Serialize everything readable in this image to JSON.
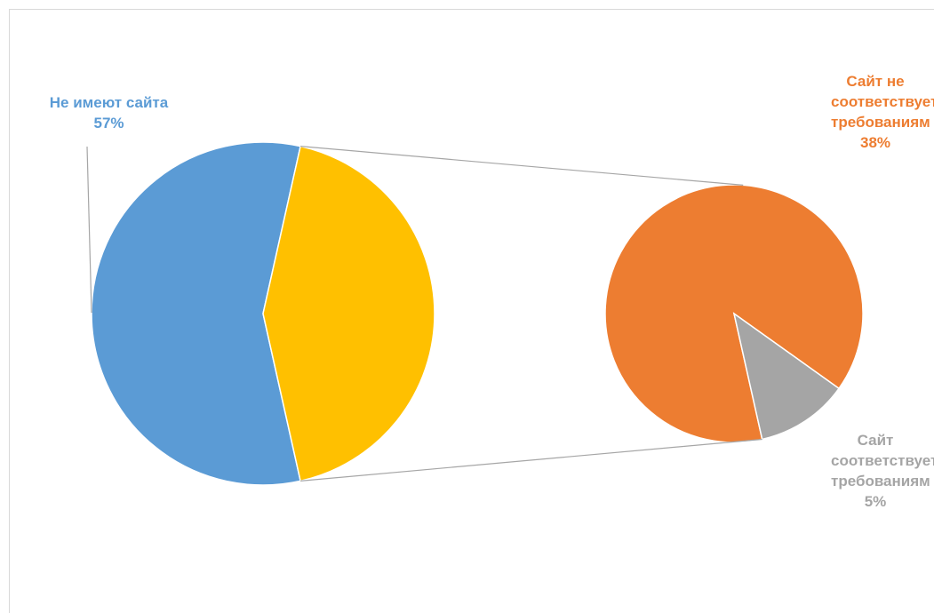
{
  "chart_data": {
    "type": "pie-of-pie",
    "categories": [
      "Не имеют сайта",
      "Сайт не соответствует требованиям",
      "Сайт соответствует требованиям"
    ],
    "values": [
      57,
      38,
      5
    ],
    "value_labels": [
      "57%",
      "38%",
      "5%"
    ],
    "colors": [
      "#5b9bd5",
      "#ed7d31",
      "#a5a5a5"
    ],
    "other_color": "#ffc000",
    "secondary": [
      1,
      2
    ]
  }
}
